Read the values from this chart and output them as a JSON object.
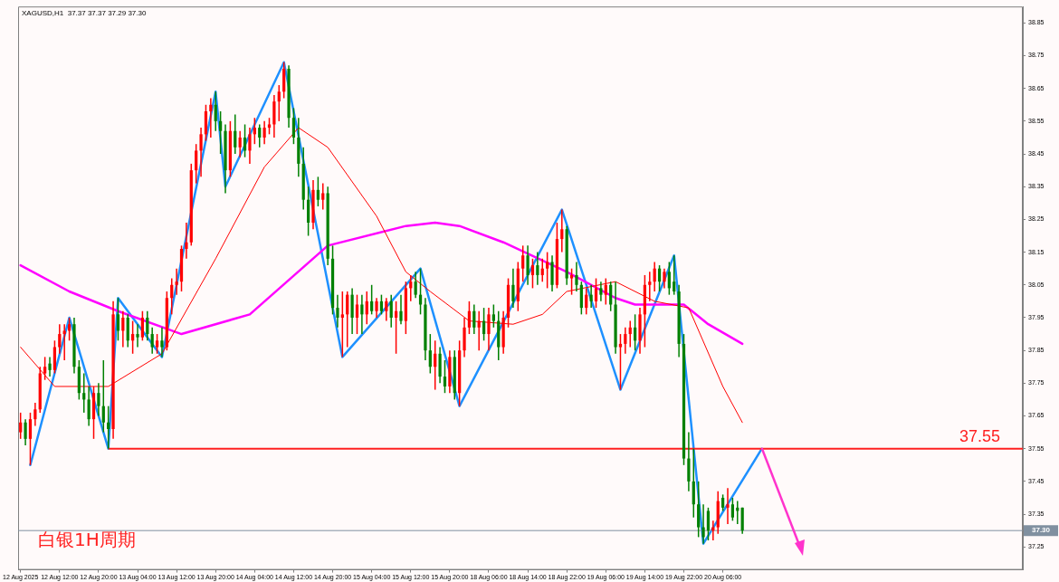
{
  "chart_data": {
    "type": "candlestick",
    "title": "XAGUSD,H1  37.37 37.37 37.29 37.30",
    "annotations": [
      "白银1H周期"
    ],
    "categories": [
      "12 Aug 2025",
      null,
      null,
      null,
      null,
      null,
      null,
      null,
      "12 Aug 12:00",
      null,
      null,
      null,
      null,
      null,
      null,
      null,
      "12 Aug 20:00",
      null,
      null,
      null,
      null,
      null,
      null,
      null,
      "13 Aug 04:00",
      null,
      null,
      null,
      null,
      null,
      null,
      null,
      "13 Aug 12:00",
      null,
      null,
      null,
      null,
      null,
      null,
      null,
      "13 Aug 20:00",
      null,
      null,
      null,
      null,
      null,
      null,
      null,
      "14 Aug 04:00",
      null,
      null,
      null,
      null,
      null,
      null,
      null,
      "14 Aug 12:00",
      null,
      null,
      null,
      null,
      null,
      null,
      null,
      "14 Aug 20:00",
      null,
      null,
      null,
      null,
      null,
      null,
      null,
      "15 Aug 04:00",
      null,
      null,
      null,
      null,
      null,
      null,
      null,
      "15 Aug 12:00",
      null,
      null,
      null,
      null,
      null,
      null,
      null,
      "15 Aug 20:00",
      null,
      null,
      null,
      null,
      null,
      null,
      null,
      "18 Aug 06:00",
      null,
      null,
      null,
      null,
      null,
      null,
      null,
      "18 Aug 14:00",
      null,
      null,
      null,
      null,
      null,
      null,
      null,
      "18 Aug 22:00",
      null,
      null,
      null,
      null,
      null,
      null,
      null,
      "19 Aug 06:00",
      null,
      null,
      null,
      null,
      null,
      null,
      null,
      "19 Aug 14:00",
      null,
      null,
      null,
      null,
      null,
      null,
      null,
      "19 Aug 22:00",
      null,
      null,
      null,
      null,
      null,
      null,
      null,
      "20 Aug 06:00",
      null,
      null,
      null,
      null,
      null,
      null,
      null,
      null,
      null,
      null,
      null,
      null,
      null,
      null,
      null,
      null,
      null,
      null,
      null,
      null,
      null,
      null,
      null,
      null,
      null,
      null,
      null,
      null,
      null,
      null,
      null,
      null,
      null,
      null,
      null,
      null,
      null,
      null,
      null,
      null,
      null,
      null,
      null,
      null,
      null,
      null,
      null,
      null,
      null,
      null,
      null,
      null,
      null,
      null,
      null,
      null,
      null,
      null,
      null,
      null,
      null
    ],
    "ohlc": [
      [
        37.6,
        37.66,
        37.58,
        37.63
      ],
      [
        37.63,
        37.64,
        37.56,
        37.58
      ],
      [
        37.58,
        37.66,
        37.5,
        37.64
      ],
      [
        37.64,
        37.69,
        37.62,
        37.67
      ],
      [
        37.67,
        37.8,
        37.66,
        37.78
      ],
      [
        37.78,
        37.83,
        37.76,
        37.8
      ],
      [
        37.81,
        37.83,
        37.77,
        37.79
      ],
      [
        37.79,
        37.88,
        37.78,
        37.86
      ],
      [
        37.86,
        37.93,
        37.84,
        37.9
      ],
      [
        37.9,
        37.93,
        37.82,
        37.91
      ],
      [
        37.91,
        37.95,
        37.88,
        37.93
      ],
      [
        37.93,
        37.95,
        37.78,
        37.8
      ],
      [
        37.8,
        37.82,
        37.7,
        37.72
      ],
      [
        37.72,
        37.78,
        37.66,
        37.7
      ],
      [
        37.7,
        37.74,
        37.62,
        37.64
      ],
      [
        37.64,
        37.74,
        37.58,
        37.72
      ],
      [
        37.72,
        37.75,
        37.65,
        37.68
      ],
      [
        37.68,
        37.82,
        37.6,
        37.63
      ],
      [
        37.63,
        37.68,
        37.55,
        37.61
      ],
      [
        37.61,
        38.0,
        37.58,
        37.96
      ],
      [
        37.96,
        38.01,
        37.88,
        37.91
      ],
      [
        37.91,
        37.97,
        37.86,
        37.95
      ],
      [
        37.95,
        37.96,
        37.86,
        37.88
      ],
      [
        37.88,
        37.94,
        37.84,
        37.9
      ],
      [
        37.9,
        37.93,
        37.86,
        37.89
      ],
      [
        37.89,
        37.97,
        37.88,
        37.95
      ],
      [
        37.95,
        37.97,
        37.88,
        37.9
      ],
      [
        37.9,
        37.92,
        37.84,
        37.86
      ],
      [
        37.86,
        37.9,
        37.84,
        37.88
      ],
      [
        37.88,
        37.92,
        37.83,
        37.86
      ],
      [
        37.86,
        38.03,
        37.85,
        38.01
      ],
      [
        38.01,
        38.07,
        37.96,
        38.05
      ],
      [
        38.05,
        38.1,
        38.02,
        38.06
      ],
      [
        38.06,
        38.17,
        38.03,
        38.16
      ],
      [
        38.16,
        38.24,
        38.13,
        38.18
      ],
      [
        38.18,
        38.42,
        38.17,
        38.4
      ],
      [
        38.4,
        38.48,
        38.36,
        38.46
      ],
      [
        38.46,
        38.53,
        38.38,
        38.51
      ],
      [
        38.51,
        38.6,
        38.49,
        38.58
      ],
      [
        38.58,
        38.62,
        38.5,
        38.6
      ],
      [
        38.6,
        38.64,
        38.52,
        38.55
      ],
      [
        38.55,
        38.58,
        38.45,
        38.52
      ],
      [
        38.52,
        38.54,
        38.33,
        38.4
      ],
      [
        38.4,
        38.55,
        38.38,
        38.52
      ],
      [
        38.52,
        38.57,
        38.45,
        38.47
      ],
      [
        38.47,
        38.52,
        38.44,
        38.5
      ],
      [
        38.5,
        38.54,
        38.44,
        38.46
      ],
      [
        38.46,
        38.53,
        38.42,
        38.51
      ],
      [
        38.51,
        38.56,
        38.48,
        38.53
      ],
      [
        38.53,
        38.54,
        38.47,
        38.5
      ],
      [
        38.5,
        38.55,
        38.48,
        38.53
      ],
      [
        38.53,
        38.56,
        38.51,
        38.54
      ],
      [
        38.54,
        38.63,
        38.5,
        38.61
      ],
      [
        38.61,
        38.66,
        38.55,
        38.64
      ],
      [
        38.64,
        38.73,
        38.62,
        38.71
      ],
      [
        38.71,
        38.72,
        38.53,
        38.56
      ],
      [
        38.56,
        38.59,
        38.48,
        38.5
      ],
      [
        38.5,
        38.56,
        38.38,
        38.42
      ],
      [
        38.42,
        38.47,
        38.28,
        38.31
      ],
      [
        38.31,
        38.35,
        38.2,
        38.24
      ],
      [
        38.24,
        38.37,
        38.22,
        38.34
      ],
      [
        38.34,
        38.38,
        38.29,
        38.31
      ],
      [
        38.31,
        38.36,
        38.28,
        38.33
      ],
      [
        38.33,
        38.35,
        38.11,
        38.13
      ],
      [
        38.13,
        38.17,
        37.96,
        37.98
      ],
      [
        37.98,
        38.02,
        37.92,
        37.95
      ],
      [
        37.95,
        38.03,
        37.83,
        37.96
      ],
      [
        37.96,
        38.03,
        37.86,
        38.02
      ],
      [
        38.02,
        38.04,
        37.9,
        37.95
      ],
      [
        37.95,
        38.02,
        37.9,
        37.99
      ],
      [
        37.99,
        38.02,
        37.9,
        37.96
      ],
      [
        37.96,
        38.03,
        37.93,
        38.0
      ],
      [
        38.0,
        38.05,
        37.96,
        37.97
      ],
      [
        37.97,
        38.01,
        37.95,
        38.0
      ],
      [
        38.0,
        38.02,
        37.96,
        37.97
      ],
      [
        37.97,
        38.01,
        37.94,
        38.0
      ],
      [
        38.0,
        38.02,
        37.92,
        37.95
      ],
      [
        37.95,
        38.0,
        37.84,
        37.97
      ],
      [
        37.97,
        38.02,
        37.93,
        37.94
      ],
      [
        37.94,
        38.06,
        37.9,
        38.04
      ],
      [
        38.04,
        38.08,
        38.0,
        38.06
      ],
      [
        38.06,
        38.09,
        38.01,
        38.02
      ],
      [
        38.02,
        38.1,
        37.96,
        37.99
      ],
      [
        37.99,
        38.01,
        37.82,
        37.85
      ],
      [
        37.85,
        37.9,
        37.78,
        37.8
      ],
      [
        37.8,
        37.88,
        37.73,
        37.84
      ],
      [
        37.84,
        37.86,
        37.75,
        37.77
      ],
      [
        37.77,
        37.82,
        37.72,
        37.74
      ],
      [
        37.74,
        37.85,
        37.72,
        37.83
      ],
      [
        37.83,
        37.85,
        37.7,
        37.72
      ],
      [
        37.72,
        37.88,
        37.68,
        37.85
      ],
      [
        37.85,
        37.95,
        37.83,
        37.92
      ],
      [
        37.92,
        38.0,
        37.9,
        37.97
      ],
      [
        37.97,
        37.99,
        37.9,
        37.92
      ],
      [
        37.92,
        37.97,
        37.85,
        37.94
      ],
      [
        37.94,
        37.98,
        37.88,
        37.9
      ],
      [
        37.9,
        37.98,
        37.85,
        37.96
      ],
      [
        37.96,
        37.99,
        37.92,
        37.94
      ],
      [
        37.94,
        37.97,
        37.82,
        37.86
      ],
      [
        37.86,
        37.97,
        37.84,
        37.95
      ],
      [
        37.95,
        38.07,
        37.92,
        38.05
      ],
      [
        38.05,
        38.1,
        37.98,
        38.0
      ],
      [
        38.0,
        38.12,
        37.97,
        38.1
      ],
      [
        38.1,
        38.17,
        38.06,
        38.14
      ],
      [
        38.14,
        38.17,
        38.05,
        38.08
      ],
      [
        38.08,
        38.13,
        38.04,
        38.11
      ],
      [
        38.11,
        38.15,
        38.05,
        38.08
      ],
      [
        38.08,
        38.13,
        38.06,
        38.1
      ],
      [
        38.1,
        38.15,
        38.04,
        38.12
      ],
      [
        38.12,
        38.14,
        38.03,
        38.05
      ],
      [
        38.05,
        38.24,
        38.04,
        38.19
      ],
      [
        38.19,
        38.28,
        38.15,
        38.22
      ],
      [
        38.22,
        38.23,
        38.05,
        38.07
      ],
      [
        38.07,
        38.1,
        38.02,
        38.08
      ],
      [
        38.08,
        38.12,
        38.03,
        38.05
      ],
      [
        38.05,
        38.06,
        37.96,
        37.98
      ],
      [
        37.98,
        38.04,
        37.96,
        38.02
      ],
      [
        38.02,
        38.05,
        37.98,
        38.0
      ],
      [
        38.0,
        38.07,
        37.98,
        38.04
      ],
      [
        38.04,
        38.06,
        38.0,
        38.02
      ],
      [
        38.02,
        38.07,
        37.99,
        38.05
      ],
      [
        38.05,
        38.06,
        37.97,
        37.99
      ],
      [
        37.99,
        38.06,
        37.84,
        37.86
      ],
      [
        37.86,
        37.9,
        37.73,
        37.87
      ],
      [
        37.87,
        37.92,
        37.84,
        37.9
      ],
      [
        37.9,
        37.94,
        37.86,
        37.92
      ],
      [
        37.92,
        37.96,
        37.85,
        37.88
      ],
      [
        37.88,
        37.98,
        37.84,
        37.96
      ],
      [
        37.96,
        38.08,
        37.86,
        38.05
      ],
      [
        38.05,
        38.09,
        38.0,
        38.06
      ],
      [
        38.06,
        38.12,
        38.03,
        38.1
      ],
      [
        38.1,
        38.11,
        38.03,
        38.06
      ],
      [
        38.06,
        38.1,
        38.04,
        38.09
      ],
      [
        38.09,
        38.12,
        38.02,
        38.04
      ],
      [
        38.06,
        38.14,
        38.02,
        38.03
      ],
      [
        38.03,
        38.05,
        37.83,
        37.87
      ],
      [
        37.87,
        37.9,
        37.5,
        37.52
      ],
      [
        37.52,
        37.6,
        37.42,
        37.45
      ],
      [
        37.45,
        37.55,
        37.34,
        37.38
      ],
      [
        37.38,
        37.45,
        37.28,
        37.31
      ],
      [
        37.31,
        37.38,
        37.26,
        37.28
      ],
      [
        37.36,
        37.37,
        37.27,
        37.3
      ],
      [
        37.3,
        37.33,
        37.27,
        37.31
      ],
      [
        37.31,
        37.42,
        37.29,
        37.39
      ],
      [
        37.4,
        37.41,
        37.36,
        37.37
      ],
      [
        37.37,
        37.43,
        37.32,
        37.38
      ],
      [
        37.38,
        37.4,
        37.33,
        37.34
      ],
      [
        37.37,
        37.39,
        37.32,
        37.36
      ],
      [
        37.37,
        37.37,
        37.29,
        37.3
      ],
      null,
      null,
      null,
      null,
      null,
      null,
      null,
      null,
      null,
      null,
      null,
      null,
      null,
      null,
      null,
      null,
      null,
      null,
      null,
      null,
      null,
      null,
      null,
      null,
      null,
      null,
      null,
      null,
      null,
      null,
      null,
      null,
      null,
      null,
      null,
      null,
      null,
      null,
      null,
      null,
      null,
      null,
      null,
      null,
      null,
      null,
      null,
      null,
      null,
      null,
      null,
      null,
      null,
      null,
      null,
      null,
      null
    ],
    "colors": [
      "#ff0000",
      "#008000",
      "#ff0000",
      "#ff0000",
      "#ff0000",
      "#ff0000",
      "#008000",
      "#ff0000",
      "#ff0000",
      "#ff0000",
      "#ff0000",
      "#008000",
      "#008000",
      "#008000",
      "#008000",
      "#ff0000",
      "#008000",
      "#008000",
      "#008000",
      "#ff0000",
      "#008000",
      "#ff0000",
      "#008000",
      "#ff0000",
      "#008000",
      "#ff0000",
      "#008000",
      "#008000",
      "#ff0000",
      "#008000",
      "#ff0000",
      "#ff0000",
      "#ff0000",
      "#ff0000",
      "#ff0000",
      "#ff0000",
      "#ff0000",
      "#ff0000",
      "#ff0000",
      "#ff0000",
      "#008000",
      "#008000",
      "#008000",
      "#ff0000",
      "#008000",
      "#ff0000",
      "#008000",
      "#ff0000",
      "#ff0000",
      "#008000",
      "#ff0000",
      "#ff0000",
      "#ff0000",
      "#ff0000",
      "#ff0000",
      "#008000",
      "#008000",
      "#008000",
      "#008000",
      "#008000",
      "#ff0000",
      "#008000",
      "#ff0000",
      "#008000",
      "#008000",
      "#008000",
      "#ff0000",
      "#ff0000",
      "#008000",
      "#ff0000",
      "#008000",
      "#ff0000",
      "#008000",
      "#ff0000",
      "#008000",
      "#ff0000",
      "#008000",
      "#ff0000",
      "#008000",
      "#ff0000",
      "#ff0000",
      "#008000",
      "#008000",
      "#008000",
      "#008000",
      "#ff0000",
      "#008000",
      "#008000",
      "#ff0000",
      "#008000",
      "#ff0000",
      "#ff0000",
      "#ff0000",
      "#008000",
      "#ff0000",
      "#008000",
      "#ff0000",
      "#008000",
      "#008000",
      "#ff0000",
      "#ff0000",
      "#008000",
      "#ff0000",
      "#ff0000",
      "#008000",
      "#ff0000",
      "#008000",
      "#ff0000",
      "#ff0000",
      "#008000",
      "#ff0000",
      "#ff0000",
      "#008000",
      "#ff0000",
      "#008000",
      "#008000",
      "#ff0000",
      "#008000",
      "#ff0000",
      "#008000",
      "#ff0000",
      "#008000",
      "#008000",
      "#ff0000",
      "#ff0000",
      "#ff0000",
      "#008000",
      "#ff0000",
      "#ff0000",
      "#ff0000",
      "#ff0000",
      "#008000",
      "#ff0000",
      "#008000",
      "#008000",
      "#008000",
      "#008000",
      "#008000",
      "#008000",
      "#008000",
      "#008000",
      "#008000",
      "#ff0000",
      "#ff0000",
      "#008000",
      "#ff0000",
      "#008000",
      "#008000",
      "#008000",
      null,
      null,
      null,
      null,
      null,
      null,
      null,
      null,
      null,
      null,
      null,
      null,
      null,
      null,
      null,
      null,
      null,
      null,
      null,
      null,
      null,
      null,
      null,
      null,
      null,
      null,
      null,
      null,
      null,
      null,
      null,
      null,
      null,
      null,
      null,
      null,
      null,
      null,
      null,
      null,
      null,
      null,
      null,
      null,
      null,
      null,
      null,
      null,
      null,
      null,
      null,
      null,
      null,
      null,
      null,
      null,
      null
    ],
    "series": [
      {
        "type": "line",
        "color": "#ff0000",
        "values": [
          37.86,
          null,
          null,
          null,
          null,
          null,
          null,
          37.74,
          null,
          null,
          null,
          null,
          null,
          null,
          null,
          null,
          null,
          null,
          37.74,
          null,
          null,
          null,
          null,
          null,
          null,
          null,
          null,
          null,
          null,
          37.84,
          null,
          null,
          null,
          null,
          null,
          null,
          null,
          null,
          null,
          null,
          38.13,
          null,
          null,
          null,
          null,
          null,
          null,
          null,
          null,
          null,
          38.41,
          null,
          null,
          null,
          null,
          null,
          null,
          38.53,
          null,
          null,
          null,
          null,
          null,
          38.47,
          null,
          null,
          null,
          null,
          null,
          null,
          null,
          null,
          null,
          38.26,
          null,
          null,
          null,
          null,
          null,
          38.09,
          null,
          null,
          null,
          null,
          38.03,
          null,
          null,
          null,
          null,
          null,
          null,
          null,
          37.94,
          null,
          null,
          null,
          null,
          null,
          null,
          null,
          null,
          37.93,
          null,
          null,
          null,
          null,
          null,
          37.96,
          null,
          null,
          null,
          null,
          38.03,
          null,
          null,
          null,
          null,
          null,
          null,
          null,
          null,
          null,
          38.06,
          null,
          null,
          null,
          null,
          null,
          null,
          null,
          38.0,
          null,
          null,
          null,
          null,
          null,
          null,
          37.98,
          null,
          null,
          null,
          null,
          null,
          null,
          37.74,
          null,
          null,
          null,
          37.63,
          null,
          null,
          null,
          null,
          null,
          null,
          null,
          null,
          null,
          null,
          null,
          null,
          null,
          null,
          null,
          null,
          null,
          null,
          null,
          null,
          null,
          null,
          null,
          null,
          null,
          null,
          null,
          null,
          null,
          null,
          null,
          null,
          null,
          null,
          null,
          null,
          null,
          null,
          null,
          null,
          null,
          null,
          null,
          null,
          null,
          null,
          null,
          null,
          null,
          null,
          null,
          null,
          null,
          null,
          null,
          null,
          null
        ]
      },
      {
        "type": "line",
        "color": "#ff00ff",
        "values": [
          38.11,
          null,
          null,
          null,
          null,
          null,
          null,
          null,
          null,
          null,
          38.03,
          null,
          null,
          null,
          null,
          null,
          null,
          null,
          null,
          null,
          37.97,
          null,
          null,
          null,
          null,
          null,
          null,
          null,
          null,
          null,
          null,
          null,
          null,
          37.9,
          null,
          null,
          null,
          null,
          null,
          null,
          null,
          null,
          null,
          null,
          null,
          null,
          null,
          37.96,
          null,
          null,
          null,
          null,
          null,
          null,
          null,
          null,
          null,
          null,
          null,
          null,
          null,
          null,
          null,
          38.17,
          null,
          null,
          null,
          null,
          null,
          null,
          null,
          null,
          null,
          null,
          null,
          null,
          null,
          null,
          null,
          38.23,
          null,
          null,
          null,
          null,
          null,
          38.24,
          null,
          null,
          null,
          null,
          38.23,
          null,
          null,
          null,
          null,
          null,
          null,
          null,
          null,
          38.18,
          null,
          null,
          null,
          null,
          null,
          null,
          null,
          null,
          null,
          null,
          null,
          null,
          38.09,
          null,
          null,
          null,
          null,
          null,
          null,
          null,
          null,
          null,
          38.01,
          null,
          null,
          null,
          37.99,
          null,
          null,
          null,
          null,
          null,
          null,
          null,
          null,
          null,
          37.99,
          null,
          null,
          null,
          null,
          37.93,
          null,
          null,
          null,
          null,
          null,
          null,
          37.87,
          null,
          null,
          null,
          null,
          null,
          null,
          null,
          null,
          null,
          null,
          null,
          null,
          null,
          null,
          null,
          null,
          null,
          null,
          null,
          null,
          null,
          null,
          null,
          null,
          null,
          null,
          null,
          null,
          null,
          null,
          null,
          null,
          null,
          null,
          null,
          null,
          null,
          null,
          null,
          null,
          null,
          null,
          null,
          null,
          null,
          null,
          null,
          null,
          null,
          null,
          null,
          null,
          null,
          null,
          null,
          null,
          null
        ]
      },
      {
        "type": "line",
        "color": "#1e90ff",
        "values": [
          null,
          null,
          37.5,
          null,
          null,
          null,
          null,
          null,
          null,
          null,
          37.95,
          null,
          null,
          null,
          null,
          null,
          null,
          null,
          37.55,
          null,
          38.01,
          null,
          null,
          null,
          null,
          null,
          null,
          null,
          null,
          37.83,
          null,
          null,
          null,
          null,
          null,
          null,
          null,
          null,
          null,
          null,
          38.64,
          null,
          38.35,
          null,
          null,
          null,
          null,
          null,
          null,
          null,
          null,
          null,
          null,
          null,
          38.73,
          null,
          null,
          null,
          null,
          null,
          null,
          null,
          null,
          null,
          null,
          null,
          37.83,
          null,
          null,
          null,
          null,
          null,
          null,
          null,
          null,
          null,
          null,
          null,
          null,
          null,
          null,
          null,
          38.1,
          null,
          null,
          null,
          null,
          null,
          null,
          null,
          37.68,
          null,
          null,
          null,
          null,
          null,
          null,
          null,
          null,
          null,
          null,
          null,
          null,
          null,
          null,
          null,
          null,
          null,
          null,
          null,
          null,
          38.28,
          null,
          null,
          null,
          null,
          null,
          null,
          null,
          null,
          null,
          null,
          null,
          37.73,
          null,
          null,
          null,
          null,
          null,
          null,
          null,
          null,
          null,
          null,
          38.14,
          null,
          null,
          null,
          null,
          null,
          37.26,
          null,
          null,
          null,
          null,
          null,
          null,
          null,
          null,
          null,
          null,
          null,
          37.55,
          null,
          null,
          null,
          null,
          null,
          null,
          null,
          null,
          null,
          null,
          null,
          null,
          null,
          null,
          null,
          null,
          null,
          null,
          null,
          null,
          null,
          null,
          null,
          null,
          null,
          null,
          null,
          null,
          null,
          null,
          null,
          null,
          null,
          null,
          null,
          null,
          null,
          null,
          null,
          null,
          null,
          null,
          null,
          null,
          null,
          null,
          null,
          null,
          null,
          null,
          null,
          null,
          null
        ]
      }
    ],
    "ylim": [
      37.18,
      38.9
    ],
    "yticks": [
      37.25,
      37.35,
      37.45,
      37.55,
      37.65,
      37.75,
      37.85,
      37.95,
      38.05,
      38.15,
      38.25,
      38.35,
      38.45,
      38.55,
      38.65,
      38.75,
      38.85
    ],
    "ref_lines": [
      {
        "axis": "y",
        "value": 37.55,
        "label": "37.55",
        "color": "#ff2020"
      },
      {
        "axis": "y",
        "value": 37.3,
        "label": "37.30",
        "color": "#8090a0"
      }
    ],
    "marker": "none",
    "line_style": "solid",
    "grid": false,
    "legend": false
  }
}
